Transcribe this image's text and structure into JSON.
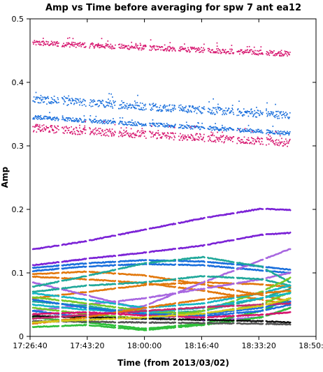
{
  "chart_data": {
    "type": "scatter",
    "title": "Amp vs Time before averaging for spw 7 ant ea12",
    "xlabel": "Time (from 2013/03/02)",
    "ylabel": "Amp",
    "xlim": [
      "17:26:40",
      "18:50:00"
    ],
    "ylim": [
      0,
      0.5
    ],
    "x_ticks": [
      "17:26:40",
      "17:43:20",
      "18:00:00",
      "18:16:40",
      "18:33:20",
      "18:50:00"
    ],
    "y_ticks": [
      "0",
      "0.1",
      "0.2",
      "0.3",
      "0.4",
      "0.5"
    ],
    "grid": false,
    "legend": "none",
    "scan_segments": [
      [
        "17:27:30",
        "17:35:00"
      ],
      [
        "17:36:00",
        "17:43:00"
      ],
      [
        "17:44:00",
        "17:51:30"
      ],
      [
        "17:52:30",
        "18:00:30"
      ],
      [
        "18:01:30",
        "18:09:00"
      ],
      [
        "18:10:00",
        "18:17:30"
      ],
      [
        "18:18:30",
        "18:26:00"
      ],
      [
        "18:27:00",
        "18:34:30"
      ],
      [
        "18:35:30",
        "18:42:30"
      ]
    ],
    "series": [
      {
        "color": "#d6146e",
        "style": "scatter",
        "spread": 0.004,
        "x": [
          "17:27:30",
          "18:42:30"
        ],
        "y": [
          0.462,
          0.445
        ]
      },
      {
        "color": "#1a6fdc",
        "style": "scatter",
        "spread": 0.006,
        "x": [
          "17:27:30",
          "18:42:30"
        ],
        "y": [
          0.373,
          0.348
        ]
      },
      {
        "color": "#1a6fdc",
        "style": "scatter",
        "spread": 0.003,
        "x": [
          "17:27:30",
          "18:42:30"
        ],
        "y": [
          0.345,
          0.32
        ]
      },
      {
        "color": "#d6146e",
        "style": "scatter",
        "spread": 0.006,
        "x": [
          "17:27:30",
          "18:42:30"
        ],
        "y": [
          0.328,
          0.305
        ]
      },
      {
        "color": "#7b22d6",
        "style": "line",
        "x": [
          "17:27:30",
          "17:43:00",
          "18:00:00",
          "18:17:00",
          "18:34:00",
          "18:42:30"
        ],
        "y": [
          0.137,
          0.15,
          0.168,
          0.186,
          0.201,
          0.199
        ]
      },
      {
        "color": "#7b22d6",
        "style": "line",
        "x": [
          "17:27:30",
          "17:43:00",
          "18:00:00",
          "18:17:00",
          "18:34:00",
          "18:42:30"
        ],
        "y": [
          0.112,
          0.122,
          0.132,
          0.143,
          0.16,
          0.163
        ]
      },
      {
        "color": "#1a6fdc",
        "style": "line",
        "x": [
          "17:27:30",
          "17:43:00",
          "18:00:00",
          "18:17:00",
          "18:34:00",
          "18:42:30"
        ],
        "y": [
          0.108,
          0.115,
          0.12,
          0.118,
          0.11,
          0.105
        ]
      },
      {
        "color": "#1a6fdc",
        "style": "line",
        "x": [
          "17:27:30",
          "17:43:00",
          "18:00:00",
          "18:17:00",
          "18:34:00",
          "18:42:30"
        ],
        "y": [
          0.103,
          0.11,
          0.114,
          0.112,
          0.104,
          0.1
        ]
      },
      {
        "color": "#e2780c",
        "style": "line",
        "x": [
          "17:27:30",
          "17:43:00",
          "18:00:00",
          "18:17:00",
          "18:34:00",
          "18:42:30"
        ],
        "y": [
          0.098,
          0.102,
          0.096,
          0.082,
          0.065,
          0.055
        ]
      },
      {
        "color": "#e2780c",
        "style": "line",
        "x": [
          "17:27:30",
          "17:43:00",
          "18:00:00",
          "18:17:00",
          "18:34:00",
          "18:42:30"
        ],
        "y": [
          0.094,
          0.09,
          0.084,
          0.072,
          0.058,
          0.05
        ]
      },
      {
        "color": "#e2780c",
        "style": "line",
        "x": [
          "17:27:30",
          "17:43:00",
          "18:00:00",
          "18:17:00",
          "18:34:00",
          "18:42:30"
        ],
        "y": [
          0.06,
          0.07,
          0.081,
          0.085,
          0.082,
          0.078
        ]
      },
      {
        "color": "#a867e0",
        "style": "line",
        "x": [
          "17:27:30",
          "17:43:00",
          "18:00:00",
          "18:17:00",
          "18:34:00",
          "18:42:30"
        ],
        "y": [
          0.03,
          0.032,
          0.048,
          0.085,
          0.12,
          0.138
        ]
      },
      {
        "color": "#a867e0",
        "style": "line",
        "x": [
          "17:27:30",
          "17:43:00",
          "18:00:00",
          "18:17:00",
          "18:34:00",
          "18:42:30"
        ],
        "y": [
          0.085,
          0.065,
          0.042,
          0.025,
          0.03,
          0.045
        ]
      },
      {
        "color": "#a867e0",
        "style": "line",
        "x": [
          "17:27:30",
          "17:43:00",
          "18:00:00",
          "18:17:00",
          "18:34:00",
          "18:42:30"
        ],
        "y": [
          0.04,
          0.05,
          0.06,
          0.075,
          0.09,
          0.1
        ]
      },
      {
        "color": "#20a89a",
        "style": "line",
        "x": [
          "17:27:30",
          "17:43:00",
          "18:00:00",
          "18:17:00",
          "18:34:00",
          "18:42:30"
        ],
        "y": [
          0.078,
          0.095,
          0.115,
          0.125,
          0.11,
          0.085
        ]
      },
      {
        "color": "#20a89a",
        "style": "line",
        "x": [
          "17:27:30",
          "17:43:00",
          "18:00:00",
          "18:17:00",
          "18:34:00",
          "18:42:30"
        ],
        "y": [
          0.07,
          0.08,
          0.085,
          0.095,
          0.09,
          0.08
        ]
      },
      {
        "color": "#20a89a",
        "style": "line",
        "x": [
          "17:27:30",
          "17:43:00",
          "18:00:00",
          "18:17:00",
          "18:34:00",
          "18:42:30"
        ],
        "y": [
          0.055,
          0.048,
          0.035,
          0.04,
          0.06,
          0.075
        ]
      },
      {
        "color": "#78c828",
        "style": "line",
        "x": [
          "17:27:30",
          "17:43:00",
          "18:00:00",
          "18:17:00",
          "18:34:00",
          "18:42:30"
        ],
        "y": [
          0.045,
          0.035,
          0.028,
          0.04,
          0.07,
          0.092
        ]
      },
      {
        "color": "#78c828",
        "style": "line",
        "x": [
          "17:27:30",
          "17:43:00",
          "18:00:00",
          "18:17:00",
          "18:34:00",
          "18:42:30"
        ],
        "y": [
          0.062,
          0.052,
          0.04,
          0.035,
          0.05,
          0.07
        ]
      },
      {
        "color": "#2fbf3a",
        "style": "line",
        "x": [
          "17:27:30",
          "17:43:00",
          "18:00:00",
          "18:17:00",
          "18:34:00",
          "18:42:30"
        ],
        "y": [
          0.03,
          0.022,
          0.012,
          0.02,
          0.04,
          0.06
        ]
      },
      {
        "color": "#2fbf3a",
        "style": "line",
        "x": [
          "17:27:30",
          "17:43:00",
          "18:00:00",
          "18:17:00",
          "18:34:00",
          "18:42:30"
        ],
        "y": [
          0.015,
          0.018,
          0.01,
          0.018,
          0.03,
          0.045
        ]
      },
      {
        "color": "#16b6c4",
        "style": "line",
        "x": [
          "17:27:30",
          "17:43:00",
          "18:00:00",
          "18:17:00",
          "18:34:00",
          "18:42:30"
        ],
        "y": [
          0.068,
          0.058,
          0.045,
          0.052,
          0.068,
          0.08
        ]
      },
      {
        "color": "#16b6c4",
        "style": "line",
        "x": [
          "17:27:30",
          "17:43:00",
          "18:00:00",
          "18:17:00",
          "18:34:00",
          "18:42:30"
        ],
        "y": [
          0.05,
          0.042,
          0.038,
          0.045,
          0.06,
          0.068
        ]
      },
      {
        "color": "#1a6fdc",
        "style": "line",
        "x": [
          "17:27:30",
          "17:43:00",
          "18:00:00",
          "18:17:00",
          "18:34:00",
          "18:42:30"
        ],
        "y": [
          0.058,
          0.045,
          0.035,
          0.032,
          0.04,
          0.05
        ]
      },
      {
        "color": "#1a6fdc",
        "style": "line",
        "x": [
          "17:27:30",
          "17:43:00",
          "18:00:00",
          "18:17:00",
          "18:34:00",
          "18:42:30"
        ],
        "y": [
          0.04,
          0.03,
          0.028,
          0.035,
          0.045,
          0.055
        ]
      },
      {
        "color": "#111111",
        "style": "line",
        "x": [
          "17:27:30",
          "17:43:00",
          "18:00:00",
          "18:17:00",
          "18:34:00",
          "18:42:30"
        ],
        "y": [
          0.032,
          0.03,
          0.028,
          0.026,
          0.024,
          0.022
        ]
      },
      {
        "color": "#555555",
        "style": "line",
        "x": [
          "17:27:30",
          "17:43:00",
          "18:00:00",
          "18:17:00",
          "18:34:00",
          "18:42:30"
        ],
        "y": [
          0.024,
          0.023,
          0.022,
          0.021,
          0.02,
          0.019
        ]
      },
      {
        "color": "#c42a6e",
        "style": "line",
        "x": [
          "17:27:30",
          "17:43:00",
          "18:00:00",
          "18:17:00",
          "18:34:00",
          "18:42:30"
        ],
        "y": [
          0.028,
          0.034,
          0.04,
          0.046,
          0.05,
          0.052
        ]
      },
      {
        "color": "#e2780c",
        "style": "line",
        "x": [
          "17:27:30",
          "17:43:00",
          "18:00:00",
          "18:17:00",
          "18:34:00",
          "18:42:30"
        ],
        "y": [
          0.02,
          0.03,
          0.045,
          0.058,
          0.068,
          0.072
        ]
      },
      {
        "color": "#d6146e",
        "style": "line",
        "x": [
          "17:27:30",
          "17:43:00",
          "18:00:00",
          "18:17:00",
          "18:34:00",
          "18:42:30"
        ],
        "y": [
          0.035,
          0.038,
          0.033,
          0.03,
          0.034,
          0.038
        ]
      },
      {
        "color": "#d4c81c",
        "style": "line",
        "x": [
          "17:27:30",
          "17:43:00",
          "18:00:00",
          "18:17:00",
          "18:34:00",
          "18:42:30"
        ],
        "y": [
          0.022,
          0.026,
          0.03,
          0.036,
          0.048,
          0.06
        ]
      }
    ]
  }
}
